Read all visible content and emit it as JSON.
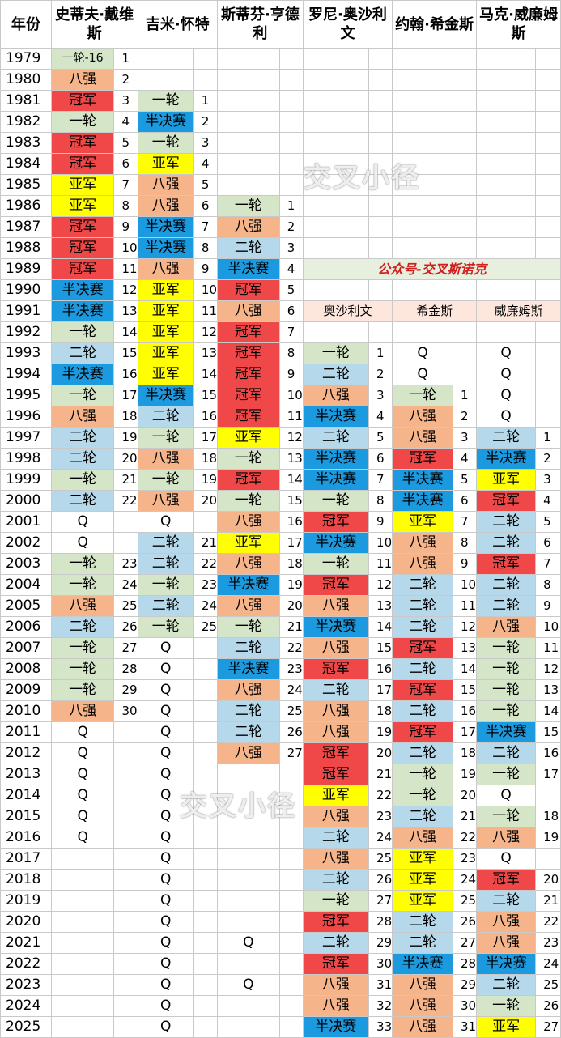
{
  "headers": [
    "年份",
    "史蒂夫·戴维斯",
    "",
    "吉米·怀特",
    "",
    "斯蒂芬·亨德利",
    "",
    "罗尼·奥沙利文",
    "",
    "约翰·希金斯",
    "",
    "马克·威廉姆斯",
    ""
  ],
  "colors": {
    "冠军": "#f04848",
    "亚军": "#ffff00",
    "半决赛": "#1c9ae0",
    "八强": "#f6b48a",
    "二轮": "#b5d9ea",
    "一轮": "#d5e5c8",
    "一轮-16": "#d5e5c8",
    "Q": "#ffffff"
  },
  "public_account": "公众号-交叉斯诺克",
  "sub_headers": [
    "奥沙利文",
    "希金斯",
    "威廉姆斯"
  ],
  "watermark": "交叉小径",
  "rows": [
    [
      "1979",
      "一轮-16",
      "1",
      "",
      "",
      "",
      "",
      "",
      "",
      "",
      "",
      "",
      ""
    ],
    [
      "1980",
      "八强",
      "2",
      "",
      "",
      "",
      "",
      "",
      "",
      "",
      "",
      "",
      ""
    ],
    [
      "1981",
      "冠军",
      "3",
      "一轮",
      "1",
      "",
      "",
      "",
      "",
      "",
      "",
      "",
      ""
    ],
    [
      "1982",
      "一轮",
      "4",
      "半决赛",
      "2",
      "",
      "",
      "",
      "",
      "",
      "",
      "",
      ""
    ],
    [
      "1983",
      "冠军",
      "5",
      "一轮",
      "3",
      "",
      "",
      "",
      "",
      "",
      "",
      "",
      ""
    ],
    [
      "1984",
      "冠军",
      "6",
      "亚军",
      "4",
      "",
      "",
      "",
      "",
      "",
      "",
      "",
      ""
    ],
    [
      "1985",
      "亚军",
      "7",
      "八强",
      "5",
      "",
      "",
      "",
      "",
      "",
      "",
      "",
      ""
    ],
    [
      "1986",
      "亚军",
      "8",
      "八强",
      "6",
      "一轮",
      "1",
      "",
      "",
      "",
      "",
      "",
      ""
    ],
    [
      "1987",
      "冠军",
      "9",
      "半决赛",
      "7",
      "八强",
      "2",
      "",
      "",
      "",
      "",
      "",
      ""
    ],
    [
      "1988",
      "冠军",
      "10",
      "半决赛",
      "8",
      "二轮",
      "3",
      "",
      "",
      "",
      "",
      "",
      ""
    ],
    [
      "1989",
      "冠军",
      "11",
      "八强",
      "9",
      "半决赛",
      "4",
      "",
      "",
      "",
      "",
      "",
      ""
    ],
    [
      "1990",
      "半决赛",
      "12",
      "亚军",
      "10",
      "冠军",
      "5",
      "",
      "",
      "",
      "",
      "",
      ""
    ],
    [
      "1991",
      "半决赛",
      "13",
      "亚军",
      "11",
      "八强",
      "6",
      "",
      "",
      "",
      "",
      "",
      ""
    ],
    [
      "1992",
      "一轮",
      "14",
      "亚军",
      "12",
      "冠军",
      "7",
      "",
      "",
      "",
      "",
      "",
      ""
    ],
    [
      "1993",
      "二轮",
      "15",
      "亚军",
      "13",
      "冠军",
      "8",
      "一轮",
      "1",
      "Q",
      "",
      "Q",
      ""
    ],
    [
      "1994",
      "半决赛",
      "16",
      "亚军",
      "14",
      "冠军",
      "9",
      "二轮",
      "2",
      "Q",
      "",
      "Q",
      ""
    ],
    [
      "1995",
      "一轮",
      "17",
      "半决赛",
      "15",
      "冠军",
      "10",
      "八强",
      "3",
      "一轮",
      "1",
      "Q",
      ""
    ],
    [
      "1996",
      "八强",
      "18",
      "二轮",
      "16",
      "冠军",
      "11",
      "半决赛",
      "4",
      "八强",
      "2",
      "Q",
      ""
    ],
    [
      "1997",
      "二轮",
      "19",
      "一轮",
      "17",
      "亚军",
      "12",
      "二轮",
      "5",
      "八强",
      "3",
      "二轮",
      "1"
    ],
    [
      "1998",
      "二轮",
      "20",
      "八强",
      "18",
      "一轮",
      "13",
      "半决赛",
      "6",
      "冠军",
      "4",
      "半决赛",
      "2"
    ],
    [
      "1999",
      "一轮",
      "21",
      "一轮",
      "19",
      "冠军",
      "14",
      "半决赛",
      "7",
      "半决赛",
      "5",
      "亚军",
      "3"
    ],
    [
      "2000",
      "二轮",
      "22",
      "八强",
      "20",
      "一轮",
      "15",
      "一轮",
      "8",
      "半决赛",
      "6",
      "冠军",
      "4"
    ],
    [
      "2001",
      "Q",
      "",
      "Q",
      "",
      "八强",
      "16",
      "冠军",
      "9",
      "亚军",
      "7",
      "二轮",
      "5"
    ],
    [
      "2002",
      "Q",
      "",
      "二轮",
      "21",
      "亚军",
      "17",
      "半决赛",
      "10",
      "八强",
      "8",
      "二轮",
      "6"
    ],
    [
      "2003",
      "一轮",
      "23",
      "二轮",
      "22",
      "八强",
      "18",
      "一轮",
      "11",
      "八强",
      "9",
      "冠军",
      "7"
    ],
    [
      "2004",
      "一轮",
      "24",
      "一轮",
      "23",
      "半决赛",
      "19",
      "冠军",
      "12",
      "二轮",
      "10",
      "二轮",
      "8"
    ],
    [
      "2005",
      "八强",
      "25",
      "二轮",
      "24",
      "八强",
      "20",
      "八强",
      "13",
      "二轮",
      "11",
      "二轮",
      "9"
    ],
    [
      "2006",
      "二轮",
      "26",
      "一轮",
      "25",
      "一轮",
      "21",
      "半决赛",
      "14",
      "二轮",
      "12",
      "八强",
      "10"
    ],
    [
      "2007",
      "一轮",
      "27",
      "Q",
      "",
      "二轮",
      "22",
      "八强",
      "15",
      "冠军",
      "13",
      "一轮",
      "11"
    ],
    [
      "2008",
      "一轮",
      "28",
      "Q",
      "",
      "半决赛",
      "23",
      "冠军",
      "16",
      "二轮",
      "14",
      "一轮",
      "12"
    ],
    [
      "2009",
      "一轮",
      "29",
      "Q",
      "",
      "八强",
      "24",
      "二轮",
      "17",
      "冠军",
      "15",
      "一轮",
      "13"
    ],
    [
      "2010",
      "八强",
      "30",
      "Q",
      "",
      "二轮",
      "25",
      "八强",
      "18",
      "二轮",
      "16",
      "一轮",
      "14"
    ],
    [
      "2011",
      "Q",
      "",
      "Q",
      "",
      "二轮",
      "26",
      "八强",
      "19",
      "冠军",
      "17",
      "半决赛",
      "15"
    ],
    [
      "2012",
      "Q",
      "",
      "Q",
      "",
      "八强",
      "27",
      "冠军",
      "20",
      "二轮",
      "18",
      "二轮",
      "16"
    ],
    [
      "2013",
      "Q",
      "",
      "Q",
      "",
      "",
      "",
      "冠军",
      "21",
      "一轮",
      "19",
      "一轮",
      "17"
    ],
    [
      "2014",
      "Q",
      "",
      "Q",
      "",
      "",
      "",
      "亚军",
      "22",
      "一轮",
      "20",
      "Q",
      ""
    ],
    [
      "2015",
      "Q",
      "",
      "Q",
      "",
      "",
      "",
      "八强",
      "23",
      "二轮",
      "21",
      "一轮",
      "18"
    ],
    [
      "2016",
      "Q",
      "",
      "Q",
      "",
      "",
      "",
      "二轮",
      "24",
      "八强",
      "22",
      "八强",
      "19"
    ],
    [
      "2017",
      "",
      "",
      "Q",
      "",
      "",
      "",
      "八强",
      "25",
      "亚军",
      "23",
      "Q",
      ""
    ],
    [
      "2018",
      "",
      "",
      "Q",
      "",
      "",
      "",
      "二轮",
      "26",
      "亚军",
      "24",
      "冠军",
      "20"
    ],
    [
      "2019",
      "",
      "",
      "Q",
      "",
      "",
      "",
      "一轮",
      "27",
      "亚军",
      "25",
      "二轮",
      "21"
    ],
    [
      "2020",
      "",
      "",
      "Q",
      "",
      "",
      "",
      "冠军",
      "28",
      "二轮",
      "26",
      "八强",
      "22"
    ],
    [
      "2021",
      "",
      "",
      "Q",
      "",
      "Q",
      "",
      "二轮",
      "29",
      "二轮",
      "27",
      "八强",
      "23"
    ],
    [
      "2022",
      "",
      "",
      "Q",
      "",
      "",
      "",
      "冠军",
      "30",
      "半决赛",
      "28",
      "半决赛",
      "24"
    ],
    [
      "2023",
      "",
      "",
      "Q",
      "",
      "Q",
      "",
      "八强",
      "31",
      "八强",
      "29",
      "二轮",
      "25"
    ],
    [
      "2024",
      "",
      "",
      "Q",
      "",
      "",
      "",
      "八强",
      "32",
      "八强",
      "30",
      "一轮",
      "26"
    ],
    [
      "2025",
      "",
      "",
      "Q",
      "",
      "",
      "",
      "半决赛",
      "33",
      "八强",
      "31",
      "亚军",
      "27"
    ]
  ]
}
